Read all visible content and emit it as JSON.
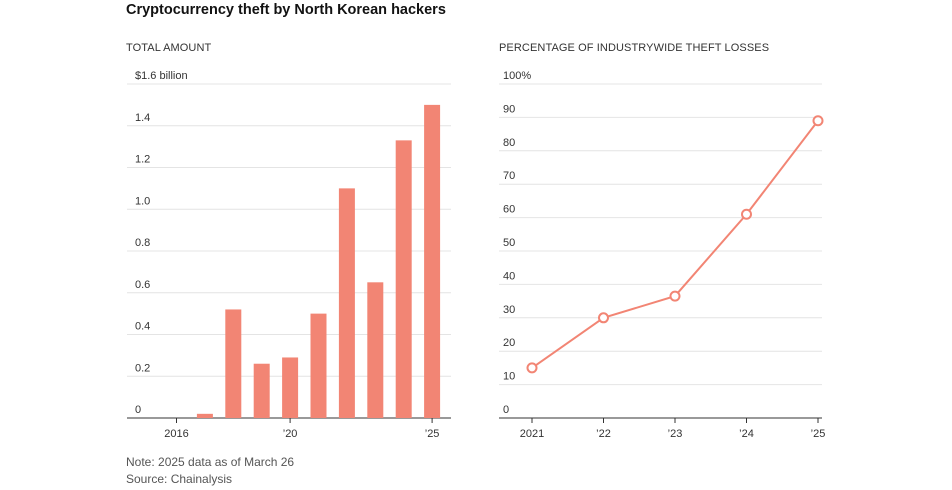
{
  "title": "Cryptocurrency theft by North Korean hackers",
  "note": "Note: 2025 data as of March 26",
  "source": "Source: Chainalysis",
  "colors": {
    "accent": "#f28574",
    "grid": "#e4e4e4",
    "axis": "#333333"
  },
  "chart_data": [
    {
      "type": "bar",
      "panel_title": "TOTAL AMOUNT",
      "categories": [
        "2016",
        "2017",
        "2018",
        "2019",
        "2020",
        "2021",
        "2022",
        "2023",
        "2024",
        "2025"
      ],
      "values": [
        0.0,
        0.02,
        0.52,
        0.26,
        0.29,
        0.5,
        1.1,
        0.65,
        1.33,
        1.5
      ],
      "ylim": [
        0,
        1.6
      ],
      "yticks": [
        0,
        0.2,
        0.4,
        0.6,
        0.8,
        1.0,
        1.2,
        1.4,
        1.6
      ],
      "ytick_labels": [
        "0",
        "0.2",
        "0.4",
        "0.6",
        "0.8",
        "1.0",
        "1.2",
        "1.4",
        "$1.6 billion"
      ],
      "xtick_positions": [
        0,
        4,
        9
      ],
      "xtick_labels": [
        "2016",
        "’20",
        "’25"
      ]
    },
    {
      "type": "line",
      "panel_title": "PERCENTAGE OF INDUSTRYWIDE THEFT LOSSES",
      "x": [
        2021,
        2022,
        2023,
        2024,
        2025
      ],
      "values": [
        15,
        30,
        36.5,
        61,
        89
      ],
      "ylim": [
        0,
        100
      ],
      "yticks": [
        0,
        10,
        20,
        30,
        40,
        50,
        60,
        70,
        80,
        90,
        100
      ],
      "ytick_labels": [
        "0",
        "10",
        "20",
        "30",
        "40",
        "50",
        "60",
        "70",
        "80",
        "90",
        "100%"
      ],
      "xtick_labels": [
        "2021",
        "’22",
        "’23",
        "’24",
        "’25"
      ]
    }
  ]
}
